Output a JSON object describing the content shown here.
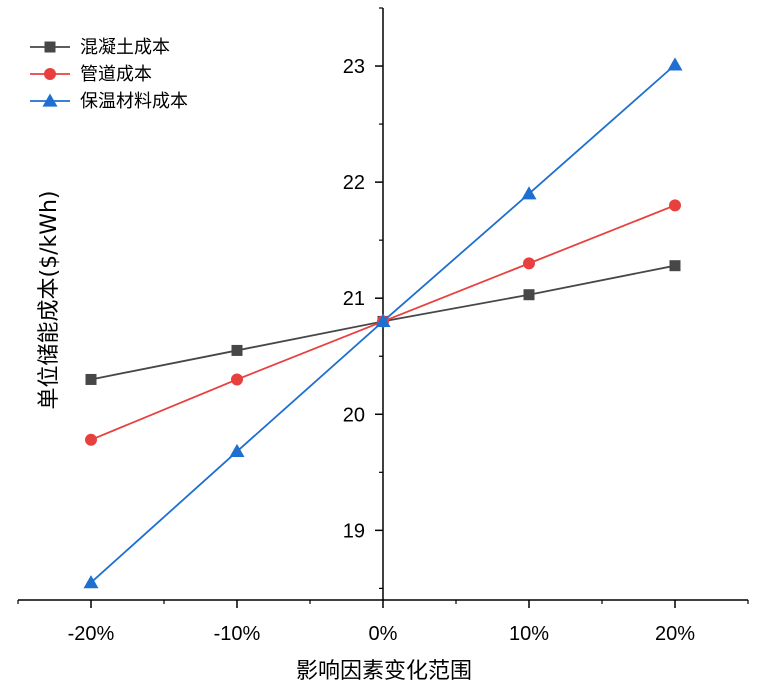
{
  "chart_data": {
    "type": "line",
    "title": "",
    "xlabel": "影响因素变化范围",
    "ylabel": "单位储能成本($/kWh)",
    "categories": [
      "-20%",
      "-10%",
      "0%",
      "10%",
      "20%"
    ],
    "x": [
      -20,
      -10,
      0,
      10,
      20
    ],
    "xlim": [
      -25,
      25
    ],
    "ylim": [
      18.4,
      23.5
    ],
    "yticks": [
      19,
      20,
      21,
      22,
      23
    ],
    "grid": false,
    "legend_position": "top-left",
    "series": [
      {
        "name": "混凝土成本",
        "marker": "square",
        "color": "#474747",
        "values": [
          20.3,
          20.55,
          20.8,
          21.03,
          21.28
        ]
      },
      {
        "name": "管道成本",
        "marker": "circle",
        "color": "#e8403f",
        "values": [
          19.78,
          20.3,
          20.8,
          21.3,
          21.8
        ]
      },
      {
        "name": "保温材料成本",
        "marker": "triangle",
        "color": "#1f6fd1",
        "values": [
          18.55,
          19.68,
          20.8,
          21.9,
          23.01
        ]
      }
    ]
  }
}
